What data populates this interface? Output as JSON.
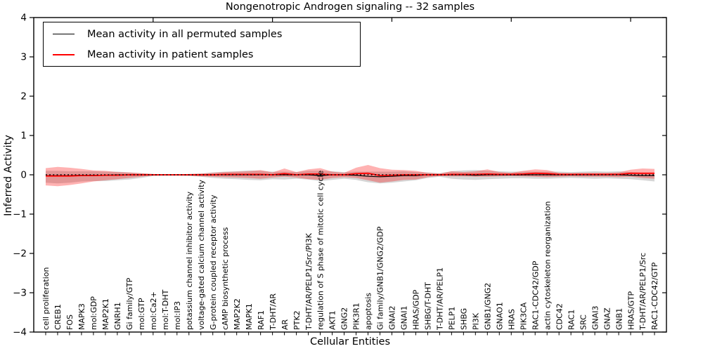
{
  "figure": {
    "title": "Nongenotropic Androgen signaling -- 32 samples",
    "xlabel": "Cellular Entities",
    "ylabel": "Inferred Activity"
  },
  "legend": {
    "items": [
      {
        "label": "Mean activity in all permuted samples",
        "color": "#000000"
      },
      {
        "label": "Mean activity in patient samples",
        "color": "#ff0000"
      }
    ]
  },
  "chart_data": {
    "type": "line",
    "title": "Nongenotropic Androgen signaling -- 32 samples",
    "xlabel": "Cellular Entities",
    "ylabel": "Inferred Activity",
    "ylim": [
      -4,
      4
    ],
    "ytick_labels": [
      "4",
      "3",
      "2",
      "1",
      "0",
      "−1",
      "−2",
      "−3",
      "−4"
    ],
    "ytick_values": [
      4,
      3,
      2,
      1,
      0,
      -1,
      -2,
      -3,
      -4
    ],
    "top_tick_positions": [
      10,
      20,
      30,
      40,
      50
    ],
    "grid": false,
    "legend_position": "upper left",
    "categories": [
      "cell proliferation",
      "CREB1",
      "FOS",
      "MAPK3",
      "mol:GDP",
      "MAP2K1",
      "GNRH1",
      "Gi family/GTP",
      "mol:GTP",
      "mol:Ca2+",
      "mol:T-DHT",
      "mol:IP3",
      "potassium channel inhibitor activity",
      "voltage-gated calcium channel activity",
      "G-protein coupled receptor activity",
      "cAMP biosynthetic process",
      "MAP2K2",
      "MAPK1",
      "RAF1",
      "T-DHT/AR",
      "AR",
      "PTK2",
      "T-DHT/AR/PELP1/Src/PI3K",
      "regulation of S phase of mitotic cell cycle",
      "AKT1",
      "GNG2",
      "PIK3R1",
      "apoptosis",
      "Gi family/GNB1/GNG2/GDP",
      "GNAI2",
      "GNAI1",
      "HRAS/GDP",
      "SHBG/T-DHT",
      "T-DHT/AR/PELP1",
      "PELP1",
      "SHBG",
      "PI3K",
      "GNB1/GNG2",
      "GNAO1",
      "HRAS",
      "PIK3CA",
      "RAC1-CDC42/GDP",
      "actin cytoskeleton reorganization",
      "CDC42",
      "RAC1",
      "SRC",
      "GNAI3",
      "GNAZ",
      "GNB1",
      "HRAS/GTP",
      "T-DHT/AR/PELP1/Src",
      "RAC1-CDC42/GTP"
    ],
    "series": [
      {
        "name": "Mean activity in all permuted samples",
        "color": "#000000",
        "line_width": 1.2,
        "band_color": "#999999",
        "band_opacity": 0.4,
        "values": [
          -0.02,
          -0.02,
          -0.02,
          -0.01,
          -0.01,
          -0.01,
          0,
          0,
          0,
          0,
          0,
          0,
          0,
          0,
          0,
          0,
          0,
          0,
          0,
          0,
          0,
          0,
          0,
          -0.02,
          0,
          0,
          -0.01,
          -0.04,
          -0.05,
          -0.04,
          -0.02,
          -0.02,
          0,
          0,
          0,
          0,
          -0.01,
          0,
          0,
          0,
          0,
          0,
          0,
          0,
          0,
          0,
          0,
          0,
          0,
          -0.01,
          -0.02,
          -0.02
        ],
        "band_upper": [
          0.1,
          0.1,
          0.09,
          0.09,
          0.09,
          0.08,
          0.08,
          0.06,
          0.04,
          0.02,
          0.01,
          0.01,
          0.02,
          0.03,
          0.06,
          0.08,
          0.09,
          0.11,
          0.1,
          0.08,
          0.08,
          0.07,
          0.1,
          0.1,
          0.09,
          0.07,
          0.08,
          0.08,
          0.08,
          0.08,
          0.09,
          0.07,
          0.06,
          0.04,
          0.09,
          0.11,
          0.12,
          0.1,
          0.09,
          0.08,
          0.08,
          0.08,
          0.08,
          0.08,
          0.07,
          0.08,
          0.09,
          0.08,
          0.09,
          0.07,
          0.05,
          0.04
        ],
        "band_lower": [
          -0.2,
          -0.22,
          -0.2,
          -0.17,
          -0.16,
          -0.16,
          -0.14,
          -0.12,
          -0.08,
          -0.03,
          -0.02,
          -0.02,
          -0.03,
          -0.05,
          -0.08,
          -0.1,
          -0.11,
          -0.13,
          -0.14,
          -0.11,
          -0.12,
          -0.1,
          -0.12,
          -0.16,
          -0.13,
          -0.1,
          -0.13,
          -0.19,
          -0.22,
          -0.2,
          -0.17,
          -0.14,
          -0.08,
          -0.05,
          -0.1,
          -0.12,
          -0.13,
          -0.11,
          -0.1,
          -0.09,
          -0.09,
          -0.1,
          -0.1,
          -0.09,
          -0.08,
          -0.09,
          -0.1,
          -0.09,
          -0.1,
          -0.11,
          -0.14,
          -0.17
        ]
      },
      {
        "name": "Mean activity in patient samples",
        "color": "#ff0000",
        "line_width": 1.8,
        "band_color": "#ff0000",
        "band_opacity": 0.3,
        "values": [
          -0.03,
          -0.03,
          -0.03,
          -0.02,
          -0.02,
          -0.01,
          -0.01,
          0,
          0,
          0,
          0,
          0,
          0,
          0,
          0,
          0.01,
          0.01,
          0.01,
          0.01,
          0,
          0.03,
          0,
          0.02,
          0.02,
          0,
          0,
          0.03,
          0.04,
          -0.02,
          -0.01,
          0,
          0,
          0,
          0,
          0.01,
          0.01,
          0.01,
          0.02,
          0.01,
          0.01,
          0.02,
          0.04,
          0.03,
          0.01,
          0.01,
          0.01,
          0.01,
          0.01,
          0.01,
          0.04,
          0.04,
          0.04
        ],
        "band_upper": [
          0.17,
          0.2,
          0.18,
          0.15,
          0.11,
          0.1,
          0.07,
          0.06,
          0.04,
          0.02,
          0.01,
          0.01,
          0.02,
          0.03,
          0.05,
          0.07,
          0.08,
          0.09,
          0.12,
          0.06,
          0.16,
          0.07,
          0.14,
          0.17,
          0.08,
          0.05,
          0.18,
          0.25,
          0.17,
          0.13,
          0.12,
          0.1,
          0.05,
          0.03,
          0.09,
          0.07,
          0.09,
          0.14,
          0.07,
          0.05,
          0.1,
          0.14,
          0.12,
          0.05,
          0.04,
          0.05,
          0.05,
          0.05,
          0.06,
          0.13,
          0.16,
          0.15
        ],
        "band_lower": [
          -0.27,
          -0.29,
          -0.26,
          -0.22,
          -0.17,
          -0.14,
          -0.11,
          -0.08,
          -0.05,
          -0.02,
          -0.02,
          -0.02,
          -0.02,
          -0.04,
          -0.05,
          -0.06,
          -0.07,
          -0.08,
          -0.1,
          -0.07,
          -0.05,
          -0.07,
          -0.11,
          -0.13,
          -0.08,
          -0.06,
          -0.08,
          -0.14,
          -0.2,
          -0.17,
          -0.13,
          -0.12,
          -0.06,
          -0.03,
          -0.04,
          -0.04,
          -0.05,
          -0.05,
          -0.04,
          -0.03,
          -0.04,
          -0.05,
          -0.06,
          -0.05,
          -0.04,
          -0.05,
          -0.05,
          -0.05,
          -0.06,
          -0.05,
          -0.08,
          -0.1
        ]
      }
    ],
    "zero_line": {
      "value": 0,
      "color": "#000000",
      "style": "dotted"
    }
  }
}
